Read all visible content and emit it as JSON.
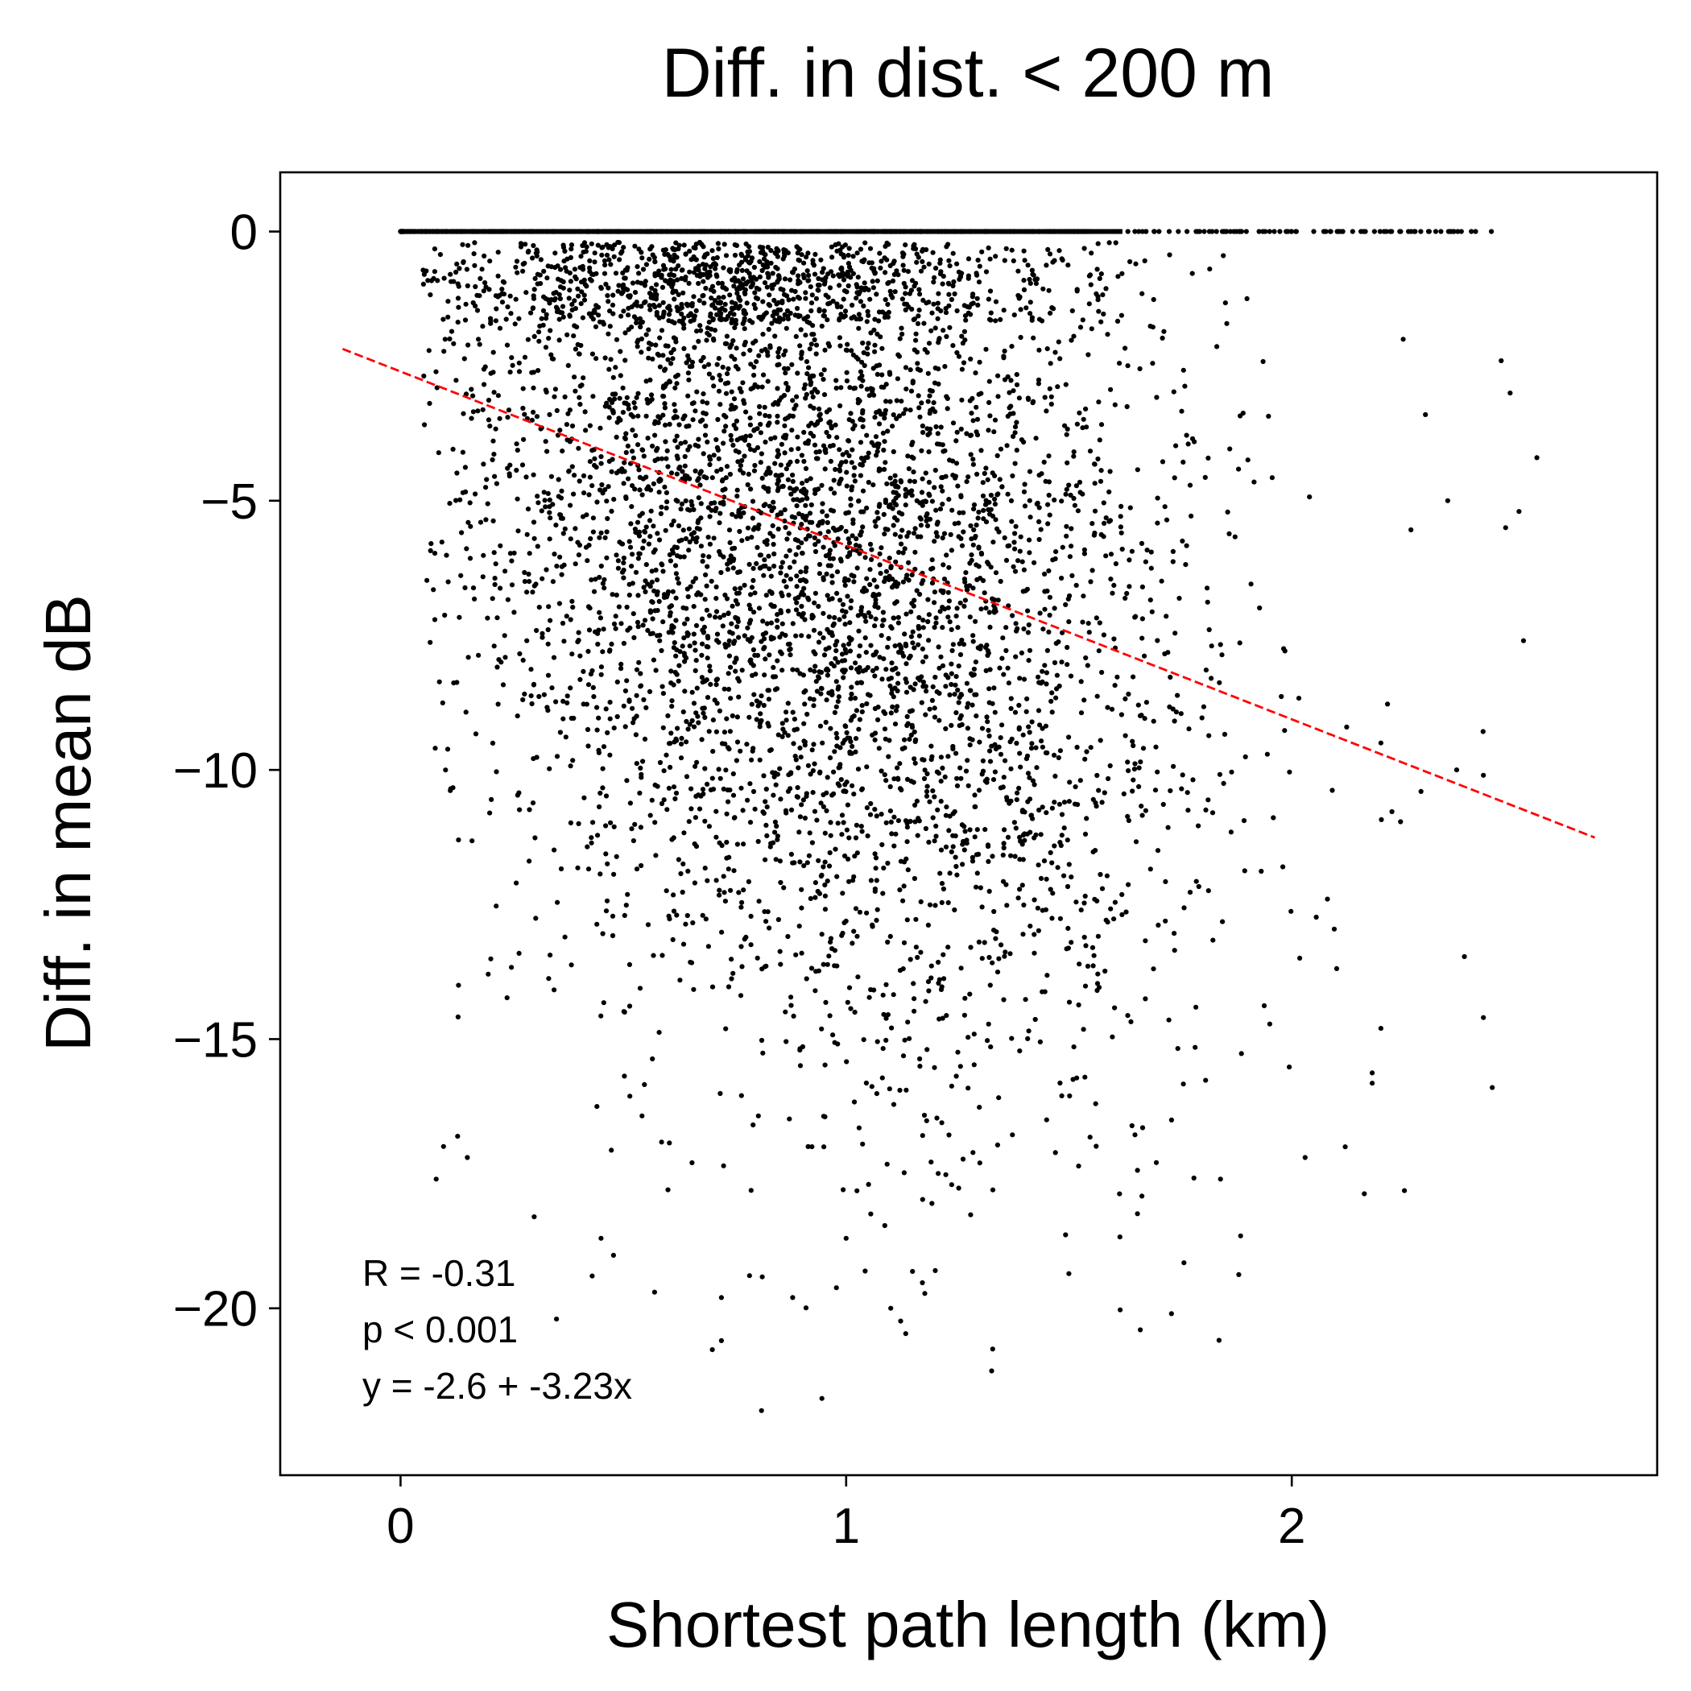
{
  "chart_data": {
    "type": "scatter",
    "title": "Diff. in dist. < 200 m",
    "xlabel": "Shortest path length (km)",
    "ylabel": "Diff. in mean dB",
    "xlim": [
      -0.27,
      2.82
    ],
    "ylim": [
      -23.1,
      1.1
    ],
    "x_ticks": [
      0,
      1,
      2
    ],
    "x_tick_labels": [
      "0",
      "1",
      "2"
    ],
    "y_ticks": [
      0,
      -5,
      -10,
      -15,
      -20
    ],
    "y_tick_labels": [
      "0",
      "−5",
      "−10",
      "−15",
      "−20"
    ],
    "grid": false,
    "legend": "none",
    "point_color": "#000000",
    "point_count_approx": 7000,
    "zero_band": {
      "y": 0,
      "x_range": [
        0.0,
        2.46
      ]
    },
    "trend_line": {
      "style": "dashed",
      "color": "#ff0000",
      "x_range": [
        -0.13,
        2.68
      ],
      "intercept": -2.6,
      "slope": -3.23
    },
    "annotations": [
      "R = -0.31",
      "p < 0.001",
      "y = -2.6 + -3.23x"
    ],
    "sample_points": [
      {
        "x": 0.08,
        "y": -17.6
      },
      {
        "x": 0.13,
        "y": -14.0
      },
      {
        "x": 0.15,
        "y": -17.2
      },
      {
        "x": 0.13,
        "y": -11.3
      },
      {
        "x": 0.18,
        "y": -5.4
      },
      {
        "x": 0.2,
        "y": -10.8
      },
      {
        "x": 0.1,
        "y": -2.0
      },
      {
        "x": 0.14,
        "y": -4.1
      },
      {
        "x": 0.35,
        "y": -20.2
      },
      {
        "x": 0.43,
        "y": -19.4
      },
      {
        "x": 0.57,
        "y": -19.7
      },
      {
        "x": 0.72,
        "y": -20.6
      },
      {
        "x": 0.81,
        "y": -21.9
      },
      {
        "x": 0.72,
        "y": -19.8
      },
      {
        "x": 0.88,
        "y": -19.8
      },
      {
        "x": 1.1,
        "y": -20.0
      },
      {
        "x": 1.66,
        "y": -20.4
      },
      {
        "x": 1.73,
        "y": -20.1
      },
      {
        "x": 1.84,
        "y": -17.6
      },
      {
        "x": 2.03,
        "y": -17.2
      },
      {
        "x": 2.12,
        "y": -17.0
      },
      {
        "x": 2.2,
        "y": -14.8
      },
      {
        "x": 2.43,
        "y": -14.6
      },
      {
        "x": 2.45,
        "y": -15.9
      },
      {
        "x": 2.48,
        "y": -5.5
      },
      {
        "x": 2.51,
        "y": -5.2
      },
      {
        "x": 2.52,
        "y": -7.6
      },
      {
        "x": 2.55,
        "y": -4.2
      },
      {
        "x": 2.49,
        "y": -3.0
      },
      {
        "x": 2.47,
        "y": -2.4
      },
      {
        "x": 2.3,
        "y": -3.4
      },
      {
        "x": 2.35,
        "y": -5.0
      },
      {
        "x": 2.25,
        "y": -2.0
      },
      {
        "x": 2.43,
        "y": -10.1
      },
      {
        "x": 2.37,
        "y": -10.0
      },
      {
        "x": 2.29,
        "y": -10.4
      },
      {
        "x": 2.2,
        "y": -9.5
      },
      {
        "x": 2.08,
        "y": -12.4
      },
      {
        "x": 1.98,
        "y": -11.8
      },
      {
        "x": 1.55,
        "y": -0.4
      },
      {
        "x": 1.65,
        "y": -0.6
      },
      {
        "x": 1.2,
        "y": -19.3
      },
      {
        "x": 1.0,
        "y": -18.7
      },
      {
        "x": 0.6,
        "y": -17.8
      },
      {
        "x": 0.45,
        "y": -18.7
      },
      {
        "x": 0.3,
        "y": -18.3
      },
      {
        "x": 0.95,
        "y": -17.0
      },
      {
        "x": 1.3,
        "y": -17.3
      },
      {
        "x": 1.45,
        "y": -16.5
      },
      {
        "x": 1.56,
        "y": -16.2
      }
    ]
  }
}
